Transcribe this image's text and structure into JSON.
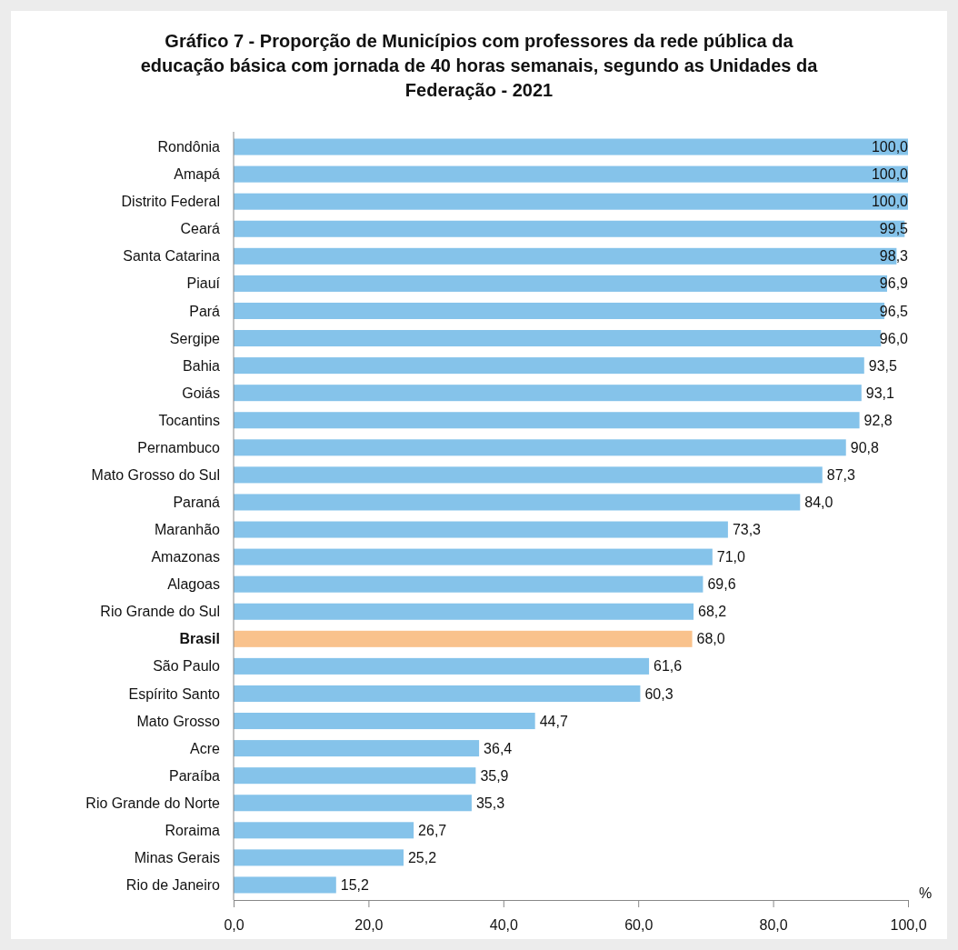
{
  "chart_data": {
    "type": "bar",
    "orientation": "horizontal",
    "title": "Gráfico 7 - Proporção de Municípios com professores da rede pública da educação básica com jornada de 40 horas semanais, segundo as Unidades da Federação - 2021",
    "xlabel": "%",
    "categories": [
      "Rondônia",
      "Amapá",
      "Distrito Federal",
      "Ceará",
      "Santa Catarina",
      "Piauí",
      "Pará",
      "Sergipe",
      "Bahia",
      "Goiás",
      "Tocantins",
      "Pernambuco",
      "Mato Grosso do Sul",
      "Paraná",
      "Maranhão",
      "Amazonas",
      "Alagoas",
      "Rio Grande do Sul",
      "Brasil",
      "São Paulo",
      "Espírito Santo",
      "Mato Grosso",
      "Acre",
      "Paraíba",
      "Rio Grande do Norte",
      "Roraima",
      "Minas Gerais",
      "Rio de Janeiro"
    ],
    "values": [
      100.0,
      100.0,
      100.0,
      99.5,
      98.3,
      96.9,
      96.5,
      96.0,
      93.5,
      93.1,
      92.8,
      90.8,
      87.3,
      84.0,
      73.3,
      71.0,
      69.6,
      68.2,
      68.0,
      61.6,
      60.3,
      44.7,
      36.4,
      35.9,
      35.3,
      26.7,
      25.2,
      15.2
    ],
    "value_labels": [
      "100,0",
      "100,0",
      "100,0",
      "99,5",
      "98,3",
      "96,9",
      "96,5",
      "96,0",
      "93,5",
      "93,1",
      "92,8",
      "90,8",
      "87,3",
      "84,0",
      "73,3",
      "71,0",
      "69,6",
      "68,2",
      "68,0",
      "61,6",
      "60,3",
      "44,7",
      "36,4",
      "35,9",
      "35,3",
      "26,7",
      "25,2",
      "15,2"
    ],
    "colors": [
      "#85c3ea",
      "#85c3ea",
      "#85c3ea",
      "#85c3ea",
      "#85c3ea",
      "#85c3ea",
      "#85c3ea",
      "#85c3ea",
      "#85c3ea",
      "#85c3ea",
      "#85c3ea",
      "#85c3ea",
      "#85c3ea",
      "#85c3ea",
      "#85c3ea",
      "#85c3ea",
      "#85c3ea",
      "#85c3ea",
      "#f9c28c",
      "#85c3ea",
      "#85c3ea",
      "#85c3ea",
      "#85c3ea",
      "#85c3ea",
      "#85c3ea",
      "#85c3ea",
      "#85c3ea",
      "#85c3ea"
    ],
    "xlim": [
      0,
      100
    ],
    "xticks": [
      {
        "value": 0,
        "label": "0,0"
      },
      {
        "value": 20,
        "label": "20,0"
      },
      {
        "value": 40,
        "label": "40,0"
      },
      {
        "value": 60,
        "label": "60,0"
      },
      {
        "value": 80,
        "label": "80,0"
      },
      {
        "value": 100,
        "label": "100,0"
      }
    ],
    "grid": false
  }
}
